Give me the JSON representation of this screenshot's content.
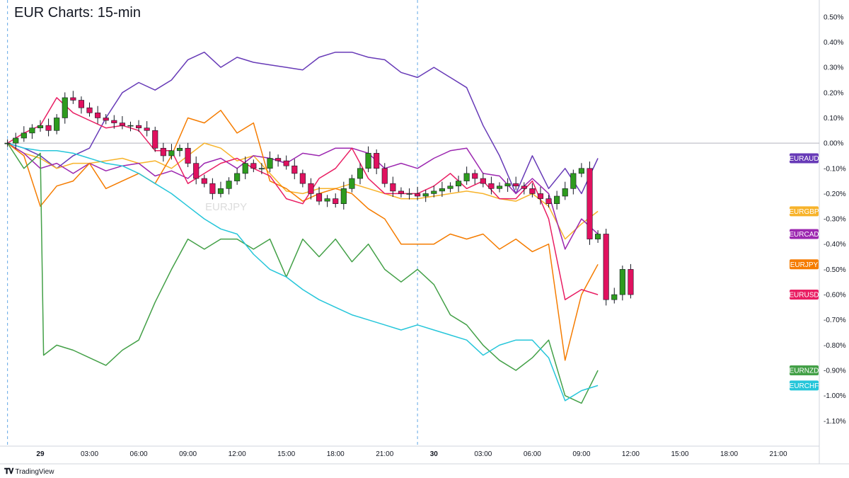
{
  "header": {
    "title": "EUR Charts: 15-min"
  },
  "branding": {
    "logo_icon": "tradingview-logo-icon",
    "name": "TradingView",
    "watermark": "EURJPY"
  },
  "chart_data": {
    "type": "line",
    "title": "EUR Charts: 15-min",
    "y_unit": "%",
    "ylim": [
      -1.2,
      0.55
    ],
    "y_ticks": [
      "0.50%",
      "0.40%",
      "0.30%",
      "0.20%",
      "0.10%",
      "0.00%",
      "-0.10%",
      "-0.20%",
      "-0.30%",
      "-0.40%",
      "-0.50%",
      "-0.60%",
      "-0.70%",
      "-0.80%",
      "-0.90%",
      "-1.00%",
      "-1.10%"
    ],
    "x_ticks": [
      {
        "label": "29",
        "hour": 0,
        "bold": true
      },
      {
        "label": "03:00",
        "hour": 3
      },
      {
        "label": "06:00",
        "hour": 6
      },
      {
        "label": "09:00",
        "hour": 9
      },
      {
        "label": "12:00",
        "hour": 12
      },
      {
        "label": "15:00",
        "hour": 15
      },
      {
        "label": "18:00",
        "hour": 18
      },
      {
        "label": "21:00",
        "hour": 21
      },
      {
        "label": "30",
        "hour": 24,
        "bold": true
      },
      {
        "label": "03:00",
        "hour": 27
      },
      {
        "label": "06:00",
        "hour": 30
      },
      {
        "label": "09:00",
        "hour": 33
      },
      {
        "label": "12:00",
        "hour": 36
      },
      {
        "label": "15:00",
        "hour": 39
      },
      {
        "label": "18:00",
        "hour": 42
      },
      {
        "label": "21:00",
        "hour": 45
      }
    ],
    "x_hours_range": [
      -2.2,
      47.5
    ],
    "session_lines_hours": [
      -2.0,
      23.0
    ],
    "zero_line": 0.0,
    "series": [
      {
        "name": "EURAUD",
        "color": "#673ab7",
        "x": [
          -2,
          -1,
          0,
          1,
          2,
          3,
          4,
          5,
          6,
          7,
          8,
          9,
          10,
          11,
          12,
          13,
          14,
          15,
          16,
          17,
          18,
          19,
          20,
          21,
          22,
          23,
          24,
          25,
          26,
          27,
          28,
          29,
          30,
          31,
          32,
          33,
          34
        ],
        "y": [
          0.0,
          -0.02,
          -0.05,
          -0.1,
          -0.05,
          -0.02,
          0.1,
          0.2,
          0.24,
          0.21,
          0.25,
          0.33,
          0.36,
          0.3,
          0.34,
          0.32,
          0.31,
          0.3,
          0.29,
          0.34,
          0.36,
          0.36,
          0.34,
          0.33,
          0.28,
          0.26,
          0.3,
          0.26,
          0.22,
          0.07,
          -0.05,
          -0.2,
          -0.05,
          -0.18,
          -0.1,
          -0.2,
          -0.06
        ]
      },
      {
        "name": "EURGBP",
        "color": "#f7b32b",
        "x": [
          -2,
          -1,
          0,
          1,
          2,
          3,
          4,
          5,
          6,
          7,
          8,
          9,
          10,
          11,
          12,
          13,
          14,
          15,
          16,
          17,
          18,
          19,
          20,
          21,
          22,
          23,
          24,
          25,
          26,
          27,
          28,
          29,
          30,
          31,
          32,
          33,
          34
        ],
        "y": [
          0.0,
          -0.04,
          -0.06,
          -0.1,
          -0.08,
          -0.08,
          -0.07,
          -0.06,
          -0.08,
          -0.07,
          -0.1,
          -0.05,
          0.0,
          -0.02,
          -0.07,
          -0.05,
          -0.12,
          -0.19,
          -0.2,
          -0.18,
          -0.18,
          -0.16,
          -0.18,
          -0.2,
          -0.22,
          -0.22,
          -0.21,
          -0.2,
          -0.19,
          -0.2,
          -0.22,
          -0.23,
          -0.2,
          -0.25,
          -0.38,
          -0.32,
          -0.27
        ]
      },
      {
        "name": "EURCAD",
        "color": "#9c27b0",
        "x": [
          -2,
          -1,
          0,
          1,
          2,
          3,
          4,
          5,
          6,
          7,
          8,
          9,
          10,
          11,
          12,
          13,
          14,
          15,
          16,
          17,
          18,
          19,
          20,
          21,
          22,
          23,
          24,
          25,
          26,
          27,
          28,
          29,
          30,
          31,
          32,
          33,
          34
        ],
        "y": [
          0.0,
          -0.04,
          -0.1,
          -0.08,
          -0.12,
          -0.08,
          -0.11,
          -0.09,
          -0.08,
          -0.13,
          -0.11,
          -0.14,
          -0.08,
          -0.06,
          -0.1,
          -0.05,
          -0.06,
          -0.08,
          -0.04,
          -0.05,
          -0.02,
          -0.02,
          -0.04,
          -0.1,
          -0.08,
          -0.1,
          -0.06,
          -0.03,
          -0.02,
          -0.12,
          -0.13,
          -0.2,
          -0.14,
          -0.2,
          -0.42,
          -0.3,
          -0.36
        ]
      },
      {
        "name": "EURJPY",
        "color": "#f57c00",
        "x": [
          -2,
          -1,
          0,
          1,
          2,
          3,
          4,
          5,
          6,
          7,
          8,
          9,
          10,
          11,
          12,
          13,
          14,
          15,
          16,
          17,
          18,
          19,
          20,
          21,
          22,
          23,
          24,
          25,
          26,
          27,
          28,
          29,
          30,
          31,
          32,
          33,
          34
        ],
        "y": [
          0.0,
          -0.05,
          -0.25,
          -0.17,
          -0.15,
          -0.08,
          -0.18,
          -0.15,
          -0.12,
          -0.16,
          -0.05,
          0.1,
          0.08,
          0.13,
          0.04,
          0.08,
          -0.15,
          -0.18,
          -0.23,
          -0.2,
          -0.18,
          -0.2,
          -0.26,
          -0.3,
          -0.4,
          -0.4,
          -0.4,
          -0.36,
          -0.38,
          -0.36,
          -0.42,
          -0.38,
          -0.43,
          -0.4,
          -0.86,
          -0.6,
          -0.48
        ]
      },
      {
        "name": "EURUSD",
        "color": "#e91e63",
        "x": [
          -2,
          -1,
          0,
          1,
          2,
          3,
          4,
          5,
          6,
          7,
          8,
          9,
          10,
          11,
          12,
          13,
          14,
          15,
          16,
          17,
          18,
          19,
          20,
          21,
          22,
          23,
          24,
          25,
          26,
          27,
          28,
          29,
          30,
          31,
          32,
          33,
          34
        ],
        "y": [
          0.0,
          0.04,
          0.07,
          0.18,
          0.12,
          0.09,
          0.06,
          0.07,
          0.05,
          -0.03,
          -0.03,
          -0.16,
          -0.12,
          -0.08,
          -0.06,
          -0.1,
          -0.13,
          -0.22,
          -0.24,
          -0.14,
          -0.1,
          -0.02,
          -0.14,
          -0.2,
          -0.2,
          -0.2,
          -0.17,
          -0.12,
          -0.18,
          -0.15,
          -0.22,
          -0.22,
          -0.15,
          -0.3,
          -0.62,
          -0.58,
          -0.6
        ]
      },
      {
        "name": "EURNZD",
        "color": "#43a047",
        "x": [
          -2,
          -1,
          0,
          0.2,
          1,
          2,
          3,
          4,
          5,
          6,
          7,
          8,
          9,
          10,
          11,
          12,
          13,
          14,
          15,
          16,
          17,
          18,
          19,
          20,
          21,
          22,
          23,
          24,
          25,
          26,
          27,
          28,
          29,
          30,
          31,
          32,
          33,
          34
        ],
        "y": [
          0.0,
          -0.1,
          -0.04,
          -0.84,
          -0.8,
          -0.82,
          -0.85,
          -0.88,
          -0.82,
          -0.78,
          -0.63,
          -0.5,
          -0.38,
          -0.42,
          -0.38,
          -0.38,
          -0.42,
          -0.38,
          -0.53,
          -0.38,
          -0.45,
          -0.38,
          -0.47,
          -0.4,
          -0.5,
          -0.55,
          -0.5,
          -0.56,
          -0.68,
          -0.72,
          -0.8,
          -0.86,
          -0.9,
          -0.85,
          -0.78,
          -1.0,
          -1.03,
          -0.9
        ]
      },
      {
        "name": "EURCHF",
        "color": "#26c6da",
        "x": [
          -2,
          -1,
          0,
          1,
          2,
          3,
          4,
          5,
          6,
          7,
          8,
          9,
          10,
          11,
          12,
          13,
          14,
          15,
          16,
          17,
          18,
          19,
          20,
          21,
          22,
          23,
          24,
          25,
          26,
          27,
          28,
          29,
          30,
          31,
          32,
          33,
          34
        ],
        "y": [
          0.0,
          -0.02,
          -0.03,
          -0.03,
          -0.04,
          -0.06,
          -0.08,
          -0.09,
          -0.12,
          -0.16,
          -0.2,
          -0.25,
          -0.3,
          -0.34,
          -0.36,
          -0.44,
          -0.5,
          -0.53,
          -0.58,
          -0.62,
          -0.65,
          -0.68,
          -0.7,
          -0.72,
          -0.74,
          -0.72,
          -0.74,
          -0.76,
          -0.78,
          -0.84,
          -0.8,
          -0.78,
          -0.78,
          -0.85,
          -1.02,
          -0.98,
          -0.96
        ]
      }
    ],
    "candles": {
      "series": "EURUSD",
      "up_color": "#2e9b1e",
      "down_color": "#e0115f",
      "start_hour": -2.0,
      "step_hours": 0.5,
      "close": [
        0.0,
        0.02,
        0.04,
        0.06,
        0.07,
        0.05,
        0.1,
        0.18,
        0.17,
        0.14,
        0.12,
        0.1,
        0.09,
        0.08,
        0.07,
        0.07,
        0.06,
        0.05,
        -0.02,
        -0.05,
        -0.03,
        -0.02,
        -0.08,
        -0.14,
        -0.16,
        -0.2,
        -0.18,
        -0.15,
        -0.12,
        -0.08,
        -0.1,
        -0.1,
        -0.06,
        -0.07,
        -0.09,
        -0.12,
        -0.16,
        -0.2,
        -0.23,
        -0.22,
        -0.24,
        -0.18,
        -0.14,
        -0.1,
        -0.04,
        -0.1,
        -0.16,
        -0.19,
        -0.2,
        -0.2,
        -0.21,
        -0.2,
        -0.19,
        -0.18,
        -0.17,
        -0.15,
        -0.12,
        -0.14,
        -0.16,
        -0.18,
        -0.17,
        -0.16,
        -0.17,
        -0.18,
        -0.2,
        -0.22,
        -0.24,
        -0.21,
        -0.18,
        -0.12,
        -0.1,
        -0.38,
        -0.36,
        -0.62,
        -0.6,
        -0.5,
        -0.6
      ]
    },
    "legend_placement": "right-axis-tags",
    "grid": false
  }
}
